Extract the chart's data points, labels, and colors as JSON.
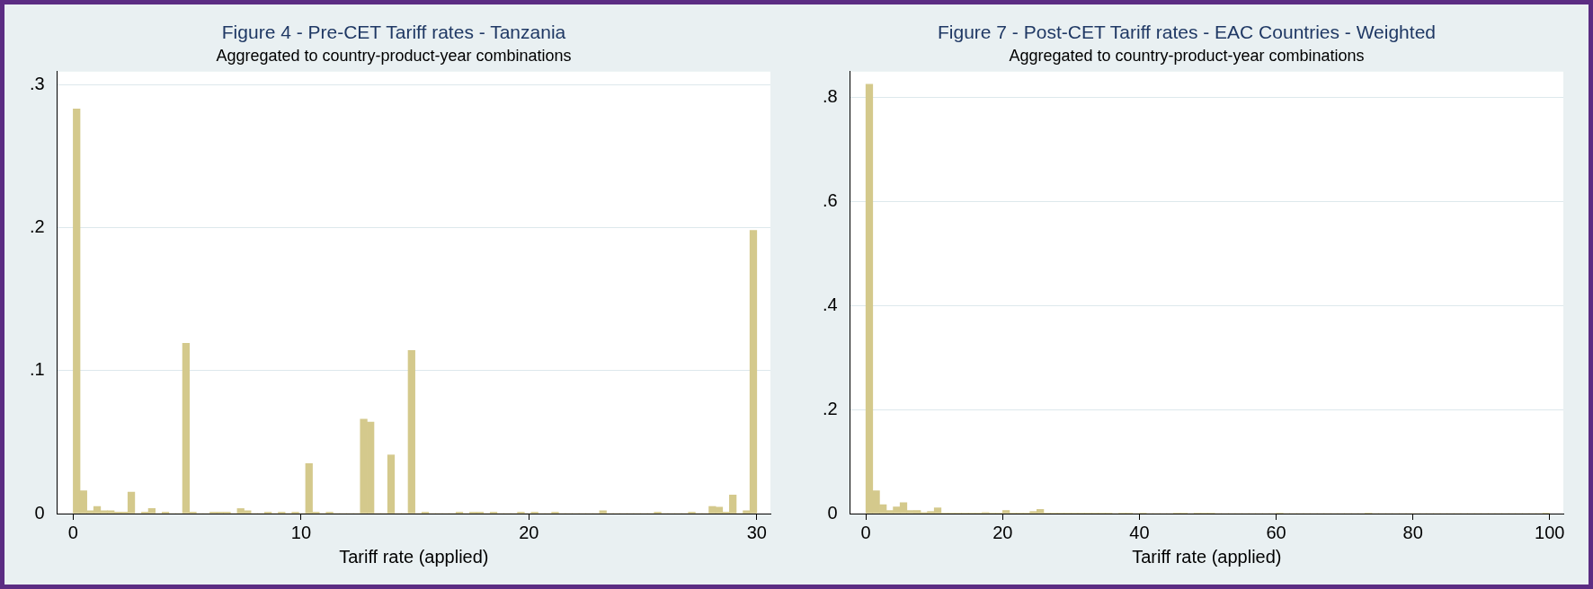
{
  "chart_data": [
    {
      "type": "histogram",
      "title": "Figure 4 - Pre-CET Tariff rates - Tanzania",
      "subtitle": "Aggregated to country-product-year combinations",
      "xlabel": "Tariff rate (applied)",
      "color": "#d4c98c",
      "bins": [
        0,
        0.3,
        0.6,
        0.9,
        1.2,
        1.5,
        1.8,
        2.1,
        2.4,
        2.7,
        3,
        3.3,
        3.6,
        3.9,
        4.2,
        4.5,
        4.8,
        5.1,
        5.4,
        5.7,
        6,
        6.3,
        6.6,
        6.9,
        7.2,
        7.5,
        7.8,
        8.1,
        8.4,
        8.7,
        9,
        9.3,
        9.6,
        9.9,
        10.2,
        10.5,
        10.8,
        11.1,
        11.4,
        11.7,
        12,
        12.3,
        12.6,
        12.9,
        13.2,
        13.5,
        13.8,
        14.1,
        14.4,
        14.7,
        15,
        15.3,
        15.6,
        15.9,
        16.2,
        16.5,
        16.8,
        17.1,
        17.4,
        17.7,
        18,
        18.3,
        18.6,
        18.9,
        19.2,
        19.5,
        19.8,
        20.1,
        20.4,
        20.7,
        21,
        21.3,
        21.6,
        21.9,
        22.2,
        22.5,
        22.8,
        23.1,
        23.4,
        23.7,
        24,
        24.3,
        24.6,
        24.9,
        25.2,
        25.5,
        25.8,
        26.1,
        26.4,
        26.7,
        27,
        27.3,
        27.6,
        27.9,
        28.2,
        28.5,
        28.8,
        29.1,
        29.4,
        29.7,
        30
      ],
      "values": [
        0.283,
        0.016,
        0.002,
        0.005,
        0.002,
        0.002,
        0.001,
        0.001,
        0.015,
        0,
        0.001,
        0.0035,
        0,
        0.001,
        0,
        0,
        0.119,
        0.001,
        0,
        0,
        0.001,
        0.001,
        0.001,
        0,
        0.0035,
        0.002,
        0,
        0,
        0.001,
        0,
        0.001,
        0,
        0.001,
        0,
        0.035,
        0.001,
        0,
        0.001,
        0,
        0,
        0,
        0,
        0.066,
        0.064,
        0,
        0,
        0.041,
        0,
        0,
        0.114,
        0,
        0.001,
        0,
        0,
        0,
        0,
        0.001,
        0,
        0.001,
        0.001,
        0,
        0.001,
        0,
        0,
        0,
        0.001,
        0,
        0.001,
        0,
        0,
        0.001,
        0,
        0,
        0,
        0,
        0,
        0,
        0.002,
        0,
        0,
        0,
        0,
        0,
        0,
        0,
        0.001,
        0,
        0,
        0,
        0,
        0.001,
        0,
        0,
        0.005,
        0.0045,
        0.001,
        0.013,
        0,
        0.002,
        0.198
      ],
      "xlim": [
        -0.7,
        30.6
      ],
      "xticks": [
        0,
        10,
        20,
        30
      ],
      "ylim": [
        0,
        0.309
      ],
      "yticks": [
        0,
        {
          "value": 0.1,
          "label": ".1"
        },
        {
          "value": 0.2,
          "label": ".2"
        },
        {
          "value": 0.3,
          "label": ".3"
        }
      ],
      "grid": "y",
      "legend": false
    },
    {
      "type": "histogram",
      "title": "Figure 7 - Post-CET Tariff rates - EAC Countries - Weighted",
      "subtitle": "Aggregated to country-product-year combinations",
      "xlabel": "Tariff rate (applied)",
      "color": "#d4c98c",
      "bins": [
        0,
        1,
        2,
        3,
        4,
        5,
        6,
        7,
        8,
        9,
        10,
        11,
        12,
        13,
        14,
        15,
        16,
        17,
        18,
        19,
        20,
        21,
        22,
        23,
        24,
        25,
        26,
        27,
        28,
        29,
        30,
        31,
        32,
        33,
        34,
        35,
        36,
        37,
        38,
        39,
        40,
        41,
        42,
        43,
        44,
        45,
        46,
        47,
        48,
        49,
        50,
        51,
        52,
        53,
        54,
        55,
        56,
        57,
        58,
        59,
        60,
        61,
        62,
        63,
        64,
        65,
        66,
        67,
        68,
        69,
        70,
        71,
        72,
        73,
        74,
        75,
        76,
        77,
        78,
        79,
        80,
        81,
        82,
        83,
        84,
        85,
        86,
        87,
        88,
        89,
        90,
        91,
        92,
        93,
        94,
        95,
        96,
        97,
        98,
        99,
        100
      ],
      "values": [
        0.825,
        0.044,
        0.017,
        0.006,
        0.013,
        0.021,
        0.006,
        0.006,
        0.002,
        0.004,
        0.011,
        0.001,
        0.001,
        0.001,
        0.001,
        0.001,
        0.001,
        0.002,
        0.001,
        0.001,
        0.006,
        0.001,
        0.001,
        0.001,
        0.004,
        0.008,
        0.001,
        0.001,
        0.001,
        0.001,
        0.001,
        0.001,
        0.001,
        0.001,
        0.001,
        0.001,
        0,
        0.001,
        0.001,
        0,
        0.001,
        0,
        0,
        0,
        0,
        0.001,
        0.001,
        0,
        0.001,
        0.001,
        0.001,
        0,
        0,
        0,
        0,
        0,
        0,
        0,
        0,
        0,
        0.001,
        0,
        0,
        0,
        0,
        0,
        0,
        0,
        0,
        0,
        0,
        0,
        0,
        0.001,
        0,
        0,
        0,
        0,
        0,
        0,
        0,
        0,
        0,
        0,
        0,
        0,
        0,
        0,
        0,
        0,
        0,
        0,
        0,
        0,
        0,
        0,
        0,
        0,
        0,
        0.001
      ],
      "xlim": [
        -2.3,
        102
      ],
      "xticks": [
        0,
        20,
        40,
        60,
        80,
        100
      ],
      "ylim": [
        0,
        0.849
      ],
      "yticks": [
        0,
        {
          "value": 0.2,
          "label": ".2"
        },
        {
          "value": 0.4,
          "label": ".4"
        },
        {
          "value": 0.6,
          "label": ".6"
        },
        {
          "value": 0.8,
          "label": ".8"
        }
      ],
      "grid": "y",
      "legend": false
    }
  ]
}
